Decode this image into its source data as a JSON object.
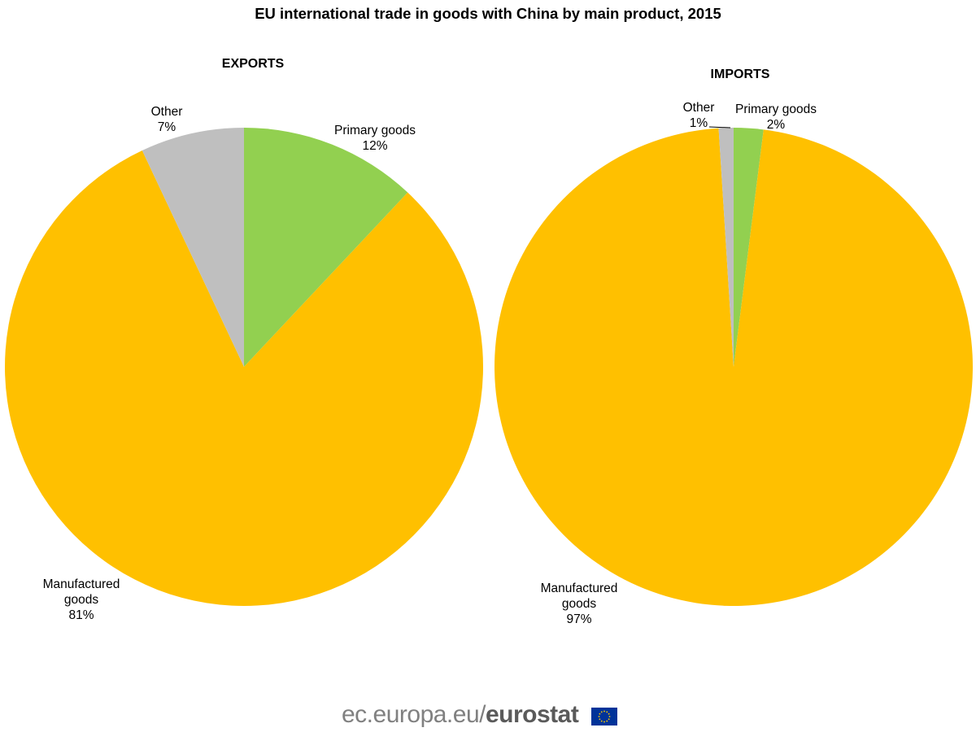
{
  "chart_title": "EU international trade in goods with China by main product, 2015",
  "chart_data": [
    {
      "type": "pie",
      "title": "EXPORTS",
      "slices": [
        {
          "label": "Primary goods",
          "value": 12,
          "value_label": "12%",
          "color": "#92d050"
        },
        {
          "label": "Manufactured goods",
          "value": 81,
          "value_label": "81%",
          "color": "#ffc000"
        },
        {
          "label": "Other",
          "value": 7,
          "value_label": "7%",
          "color": "#bfbfbf"
        }
      ]
    },
    {
      "type": "pie",
      "title": "IMPORTS",
      "slices": [
        {
          "label": "Primary goods",
          "value": 2,
          "value_label": "2%",
          "color": "#92d050"
        },
        {
          "label": "Manufactured goods",
          "value": 97,
          "value_label": "97%",
          "color": "#ffc000"
        },
        {
          "label": "Other",
          "value": 1,
          "value_label": "1%",
          "color": "#bfbfbf"
        }
      ]
    }
  ],
  "footer": {
    "site": "ec.europa.eu/",
    "brand": "eurostat",
    "flag_icon": "eu-flag-icon"
  }
}
